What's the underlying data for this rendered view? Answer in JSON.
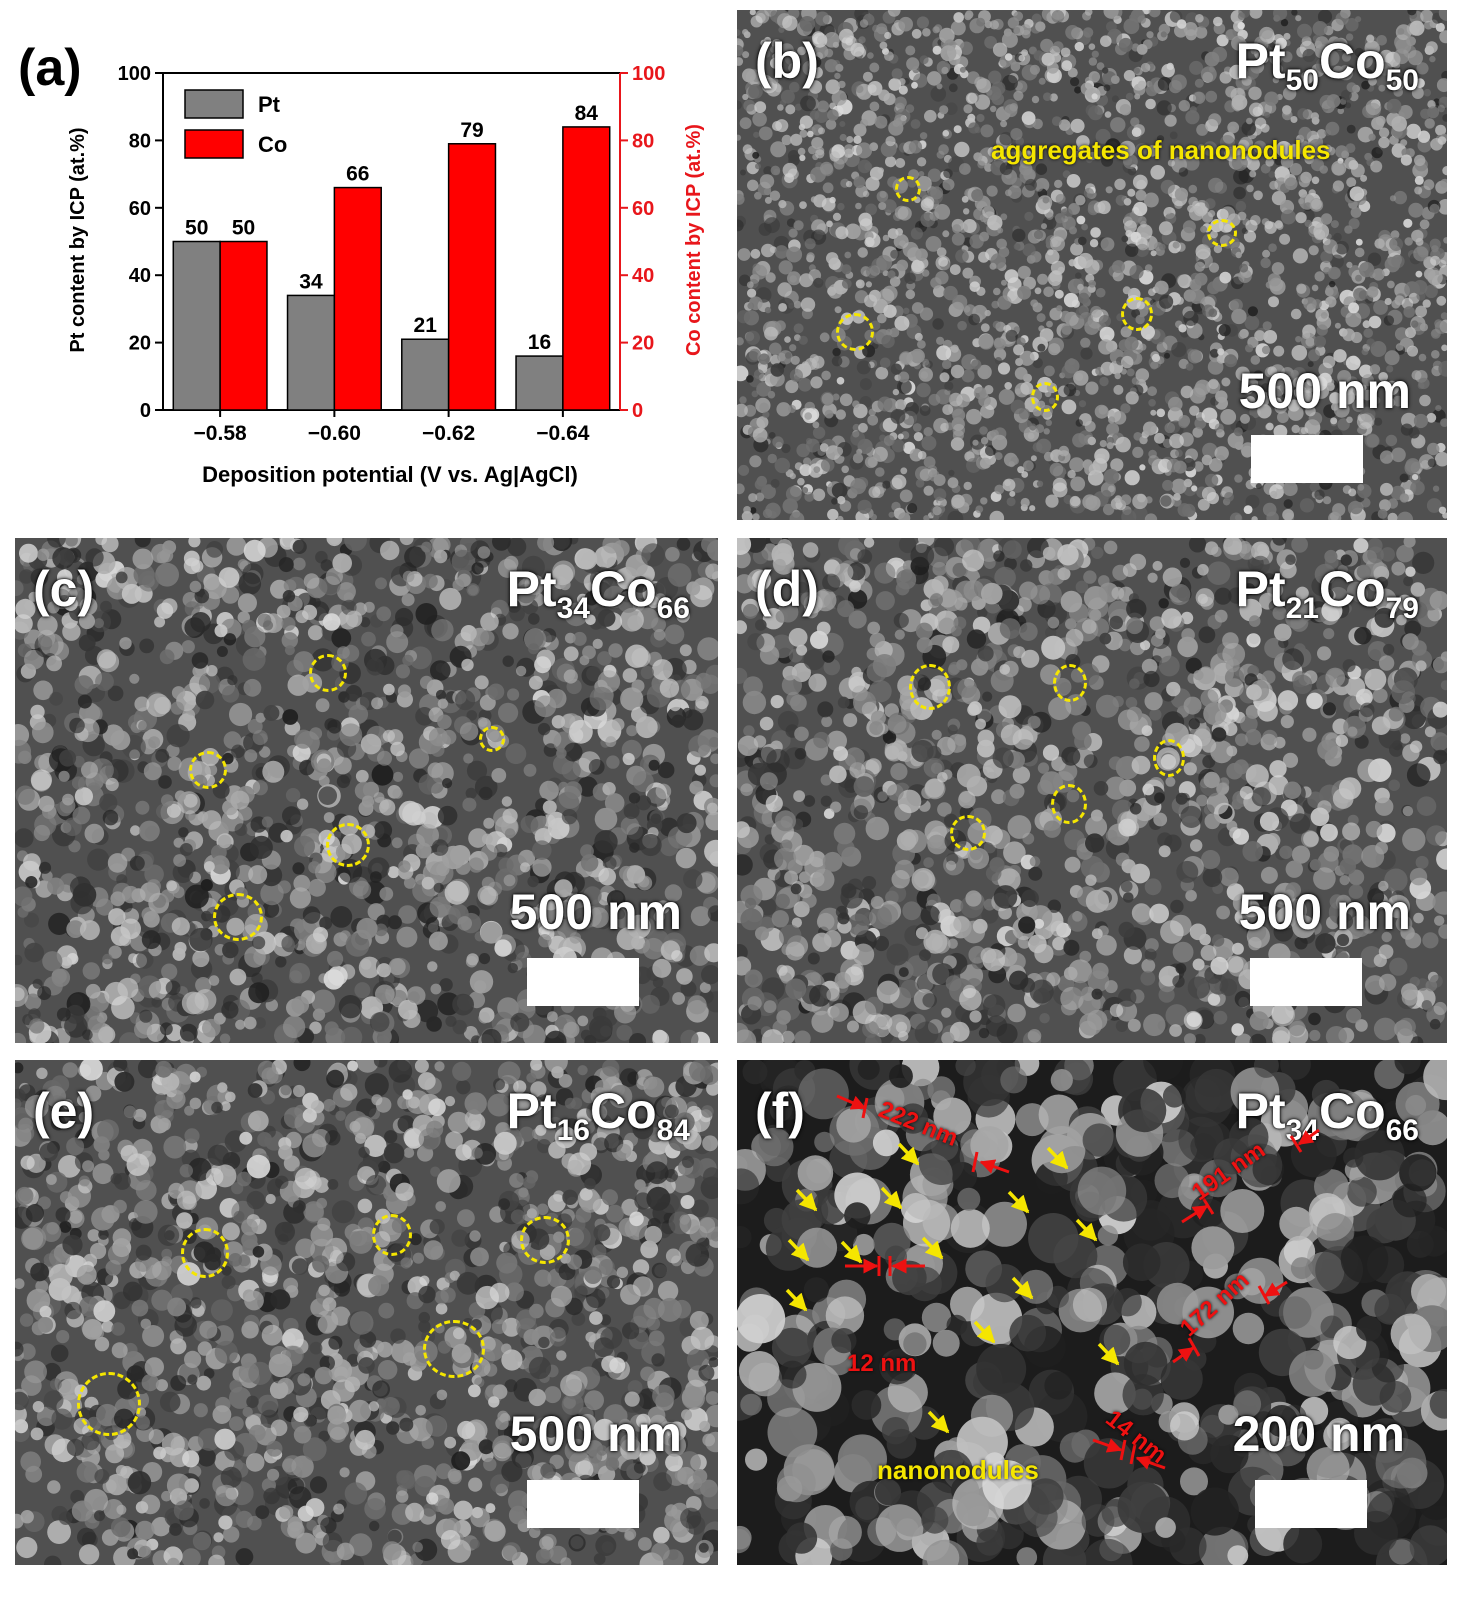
{
  "chart_data": {
    "type": "bar",
    "panel_label": "(a)",
    "categories": [
      "−0.58",
      "−0.60",
      "−0.62",
      "−0.64"
    ],
    "xlabel": "Deposition potential (V vs. Ag|AgCl)",
    "ylabel_left": "Pt content by ICP (at.%)",
    "ylabel_right": "Co content by ICP (at.%)",
    "ylim": [
      0,
      100
    ],
    "yticks": [
      0,
      20,
      40,
      60,
      80,
      100
    ],
    "legend_position": "top-left",
    "series": [
      {
        "name": "Pt",
        "values": [
          50,
          34,
          21,
          16
        ],
        "color": "#808080",
        "axis": "left"
      },
      {
        "name": "Co",
        "values": [
          50,
          66,
          79,
          84
        ],
        "color": "#ff0000",
        "axis": "right"
      }
    ],
    "data_labels": true
  },
  "colors": {
    "right_axis": "#e8161b",
    "annotation_yellow": "#f5e600",
    "annotation_red": "#ee1111"
  },
  "panels": {
    "b": {
      "label": "(b)",
      "comp_el1": "Pt",
      "comp_n1": "50",
      "comp_el2": "Co",
      "comp_n2": "50",
      "annotation": "aggregates of nanonodules",
      "scale": "500 nm"
    },
    "c": {
      "label": "(c)",
      "comp_el1": "Pt",
      "comp_n1": "34",
      "comp_el2": "Co",
      "comp_n2": "66",
      "scale": "500 nm"
    },
    "d": {
      "label": "(d)",
      "comp_el1": "Pt",
      "comp_n1": "21",
      "comp_el2": "Co",
      "comp_n2": "79",
      "scale": "500 nm"
    },
    "e": {
      "label": "(e)",
      "comp_el1": "Pt",
      "comp_n1": "16",
      "comp_el2": "Co",
      "comp_n2": "84",
      "scale": "500 nm"
    },
    "f": {
      "label": "(f)",
      "comp_el1": "Pt",
      "comp_n1": "34",
      "comp_el2": "Co",
      "comp_n2": "66",
      "scale": "200 nm",
      "annotation": "nanonodules",
      "measurements": [
        "222 nm",
        "191 nm",
        "172 nm",
        "12 nm",
        "14 nm"
      ]
    }
  }
}
